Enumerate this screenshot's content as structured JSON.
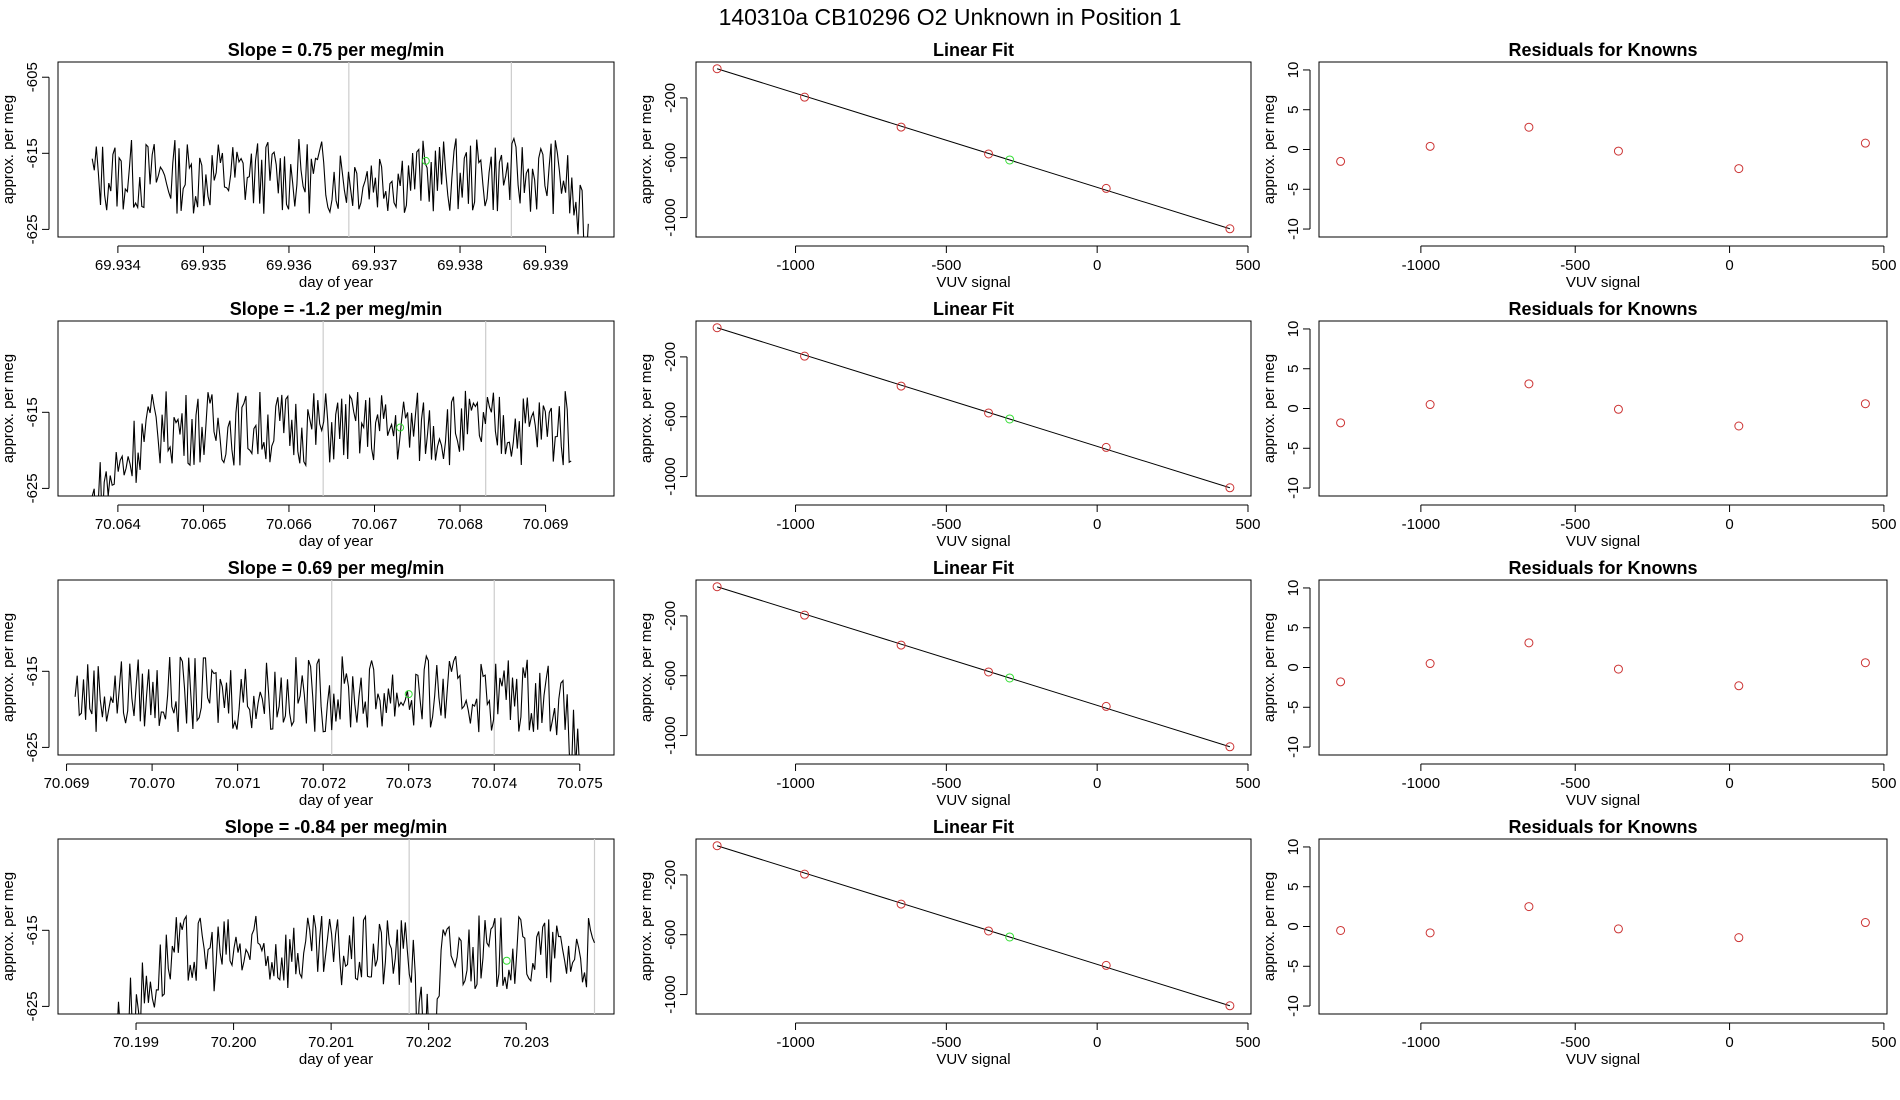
{
  "figure": {
    "title": "140310a      CB10296    O2 Unknown in Position  1",
    "colors": {
      "trace": "#000000",
      "known_point": "#cc3333",
      "unknown_point": "#33dd33",
      "marker_line": "#cccccc",
      "fit_line": "#000000"
    }
  },
  "chart_data": [
    {
      "type": "line",
      "title": "Slope =  0.75  per meg/min",
      "xlabel": "day of year",
      "ylabel": "approx. per meg",
      "xlim": [
        69.9333,
        69.9398
      ],
      "ylim": [
        -626,
        -603
      ],
      "xticks": [
        69.934,
        69.935,
        69.936,
        69.937,
        69.938,
        69.939
      ],
      "xtick_labels": [
        "69.934",
        "69.935",
        "69.936",
        "69.937",
        "69.938",
        "69.939"
      ],
      "yticks": [
        -605,
        -615,
        -625
      ],
      "ytick_labels": [
        "-605",
        "-615",
        "-625"
      ],
      "markers_x": [
        69.9367,
        69.9386
      ],
      "unknown_point": {
        "x": 69.9376,
        "y": -616.0
      },
      "trace_start": 69.9337,
      "trace_end": 69.9395,
      "trace_base": -618,
      "trace_amp": 5,
      "trace_lead_in": false,
      "trace_tail_drop": true,
      "trace_dip_x": null
    },
    {
      "type": "line",
      "title": "Slope =  -1.2  per meg/min",
      "xlabel": "day of year",
      "ylabel": "approx. per meg",
      "xlim": [
        70.0633,
        70.0698
      ],
      "ylim": [
        -626,
        -603
      ],
      "xticks": [
        70.064,
        70.065,
        70.066,
        70.067,
        70.068,
        70.069
      ],
      "xtick_labels": [
        "70.064",
        "70.065",
        "70.066",
        "70.067",
        "70.068",
        "70.069"
      ],
      "yticks": [
        -615,
        -625
      ],
      "ytick_labels": [
        "-615",
        "-625"
      ],
      "markers_x": [
        70.0664,
        70.0683
      ],
      "unknown_point": {
        "x": 70.0673,
        "y": -617.0
      },
      "trace_start": 70.0637,
      "trace_end": 70.0693,
      "trace_base": -617,
      "trace_amp": 5,
      "trace_lead_in": true,
      "trace_tail_drop": false,
      "trace_dip_x": null
    },
    {
      "type": "line",
      "title": "Slope =  0.69  per meg/min",
      "xlabel": "day of year",
      "ylabel": "approx. per meg",
      "xlim": [
        70.0689,
        70.0754
      ],
      "ylim": [
        -626,
        -603
      ],
      "xticks": [
        70.069,
        70.07,
        70.071,
        70.072,
        70.073,
        70.074,
        70.075
      ],
      "xtick_labels": [
        "70.069",
        "70.070",
        "70.071",
        "70.072",
        "70.073",
        "70.074",
        "70.075"
      ],
      "yticks": [
        -615,
        -625
      ],
      "ytick_labels": [
        "-615",
        "-625"
      ],
      "markers_x": [
        70.0721,
        70.074
      ],
      "unknown_point": {
        "x": 70.073,
        "y": -618.0
      },
      "trace_start": 70.0691,
      "trace_end": 70.075,
      "trace_base": -618,
      "trace_amp": 5,
      "trace_lead_in": false,
      "trace_tail_drop": true,
      "trace_dip_x": null
    },
    {
      "type": "line",
      "title": "Slope =  -0.84  per meg/min",
      "xlabel": "day of year",
      "ylabel": "approx. per meg",
      "xlim": [
        70.1982,
        70.2039
      ],
      "ylim": [
        -626,
        -603
      ],
      "xticks": [
        70.199,
        70.2,
        70.201,
        70.202,
        70.203
      ],
      "xtick_labels": [
        "70.199",
        "70.200",
        "70.201",
        "70.202",
        "70.203"
      ],
      "yticks": [
        -615,
        -625
      ],
      "ytick_labels": [
        "-615",
        "-625"
      ],
      "markers_x": [
        70.2018,
        70.2037
      ],
      "unknown_point": {
        "x": 70.2028,
        "y": -619.0
      },
      "trace_start": 70.1988,
      "trace_end": 70.2037,
      "trace_base": -618,
      "trace_amp": 5,
      "trace_lead_in": true,
      "trace_tail_drop": false,
      "trace_dip_x": 70.202
    },
    {
      "type": "scatter",
      "title": "Linear Fit",
      "xlabel": "VUV signal",
      "ylabel": "approx. per meg",
      "xlim": [
        -1330,
        510
      ],
      "ylim": [
        -1130,
        40
      ],
      "xticks": [
        -1000,
        -500,
        0,
        500
      ],
      "xtick_labels": [
        "-1000",
        "-500",
        "0",
        "500"
      ],
      "yticks": [
        -200,
        -600,
        -1000
      ],
      "ytick_labels": [
        "-200",
        "-600",
        "-1000"
      ],
      "known_x": [
        -1260,
        -970,
        -650,
        -360,
        30,
        440
      ],
      "known_y": [
        -5,
        -195,
        -395,
        -575,
        -805,
        -1075
      ],
      "unknown": {
        "x": -290,
        "y": -615
      },
      "fit": {
        "x0": -1260,
        "y0": -5,
        "x1": 440,
        "y1": -1075
      }
    },
    {
      "type": "scatter",
      "title": "Linear Fit",
      "xlabel": "VUV signal",
      "ylabel": "approx. per meg",
      "xlim": [
        -1330,
        510
      ],
      "ylim": [
        -1130,
        40
      ],
      "xticks": [
        -1000,
        -500,
        0,
        500
      ],
      "xtick_labels": [
        "-1000",
        "-500",
        "0",
        "500"
      ],
      "yticks": [
        -200,
        -600,
        -1000
      ],
      "ytick_labels": [
        "-200",
        "-600",
        "-1000"
      ],
      "known_x": [
        -1260,
        -970,
        -650,
        -360,
        30,
        440
      ],
      "known_y": [
        -5,
        -195,
        -395,
        -575,
        -805,
        -1075
      ],
      "unknown": {
        "x": -290,
        "y": -615
      },
      "fit": {
        "x0": -1260,
        "y0": -5,
        "x1": 440,
        "y1": -1075
      }
    },
    {
      "type": "scatter",
      "title": "Linear Fit",
      "xlabel": "VUV signal",
      "ylabel": "approx. per meg",
      "xlim": [
        -1330,
        510
      ],
      "ylim": [
        -1130,
        40
      ],
      "xticks": [
        -1000,
        -500,
        0,
        500
      ],
      "xtick_labels": [
        "-1000",
        "-500",
        "0",
        "500"
      ],
      "yticks": [
        -200,
        -600,
        -1000
      ],
      "ytick_labels": [
        "-200",
        "-600",
        "-1000"
      ],
      "known_x": [
        -1260,
        -970,
        -650,
        -360,
        30,
        440
      ],
      "known_y": [
        -5,
        -195,
        -395,
        -575,
        -805,
        -1075
      ],
      "unknown": {
        "x": -290,
        "y": -615
      },
      "fit": {
        "x0": -1260,
        "y0": -5,
        "x1": 440,
        "y1": -1075
      }
    },
    {
      "type": "scatter",
      "title": "Linear Fit",
      "xlabel": "VUV signal",
      "ylabel": "approx. per meg",
      "xlim": [
        -1330,
        510
      ],
      "ylim": [
        -1130,
        40
      ],
      "xticks": [
        -1000,
        -500,
        0,
        500
      ],
      "xtick_labels": [
        "-1000",
        "-500",
        "0",
        "500"
      ],
      "yticks": [
        -200,
        -600,
        -1000
      ],
      "ytick_labels": [
        "-200",
        "-600",
        "-1000"
      ],
      "known_x": [
        -1260,
        -970,
        -650,
        -360,
        30,
        440
      ],
      "known_y": [
        -5,
        -195,
        -395,
        -575,
        -805,
        -1075
      ],
      "unknown": {
        "x": -290,
        "y": -615
      },
      "fit": {
        "x0": -1260,
        "y0": -5,
        "x1": 440,
        "y1": -1075
      }
    },
    {
      "type": "scatter",
      "title": "Residuals for Knowns",
      "xlabel": "VUV signal",
      "ylabel": "approx. per meg",
      "xlim": [
        -1330,
        510
      ],
      "ylim": [
        -11,
        11
      ],
      "xticks": [
        -1000,
        -500,
        0,
        500
      ],
      "xtick_labels": [
        "-1000",
        "-500",
        "0",
        "500"
      ],
      "yticks": [
        10,
        5,
        0,
        -5,
        -10
      ],
      "ytick_labels": [
        "10",
        "5",
        "0",
        "-5",
        "-10"
      ],
      "x": [
        -1260,
        -970,
        -650,
        -360,
        30,
        440
      ],
      "y": [
        -1.5,
        0.4,
        2.8,
        -0.2,
        -2.4,
        0.8
      ]
    },
    {
      "type": "scatter",
      "title": "Residuals for Knowns",
      "xlabel": "VUV signal",
      "ylabel": "approx. per meg",
      "xlim": [
        -1330,
        510
      ],
      "ylim": [
        -11,
        11
      ],
      "xticks": [
        -1000,
        -500,
        0,
        500
      ],
      "xtick_labels": [
        "-1000",
        "-500",
        "0",
        "500"
      ],
      "yticks": [
        10,
        5,
        0,
        -5,
        -10
      ],
      "ytick_labels": [
        "10",
        "5",
        "0",
        "-5",
        "-10"
      ],
      "x": [
        -1260,
        -970,
        -650,
        -360,
        30,
        440
      ],
      "y": [
        -1.8,
        0.5,
        3.1,
        -0.1,
        -2.2,
        0.6
      ]
    },
    {
      "type": "scatter",
      "title": "Residuals for Knowns",
      "xlabel": "VUV signal",
      "ylabel": "approx. per meg",
      "xlim": [
        -1330,
        510
      ],
      "ylim": [
        -11,
        11
      ],
      "xticks": [
        -1000,
        -500,
        0,
        500
      ],
      "xtick_labels": [
        "-1000",
        "-500",
        "0",
        "500"
      ],
      "yticks": [
        10,
        5,
        0,
        -5,
        -10
      ],
      "ytick_labels": [
        "10",
        "5",
        "0",
        "-5",
        "-10"
      ],
      "x": [
        -1260,
        -970,
        -650,
        -360,
        30,
        440
      ],
      "y": [
        -1.8,
        0.5,
        3.1,
        -0.2,
        -2.3,
        0.6
      ]
    },
    {
      "type": "scatter",
      "title": "Residuals for Knowns",
      "xlabel": "VUV signal",
      "ylabel": "approx. per meg",
      "xlim": [
        -1330,
        510
      ],
      "ylim": [
        -11,
        11
      ],
      "xticks": [
        -1000,
        -500,
        0,
        500
      ],
      "xtick_labels": [
        "-1000",
        "-500",
        "0",
        "500"
      ],
      "yticks": [
        10,
        5,
        0,
        -5,
        -10
      ],
      "ytick_labels": [
        "10",
        "5",
        "0",
        "-5",
        "-10"
      ],
      "x": [
        -1260,
        -970,
        -650,
        -360,
        30,
        440
      ],
      "y": [
        -0.5,
        -0.8,
        2.5,
        -0.3,
        -1.4,
        0.5
      ]
    }
  ]
}
